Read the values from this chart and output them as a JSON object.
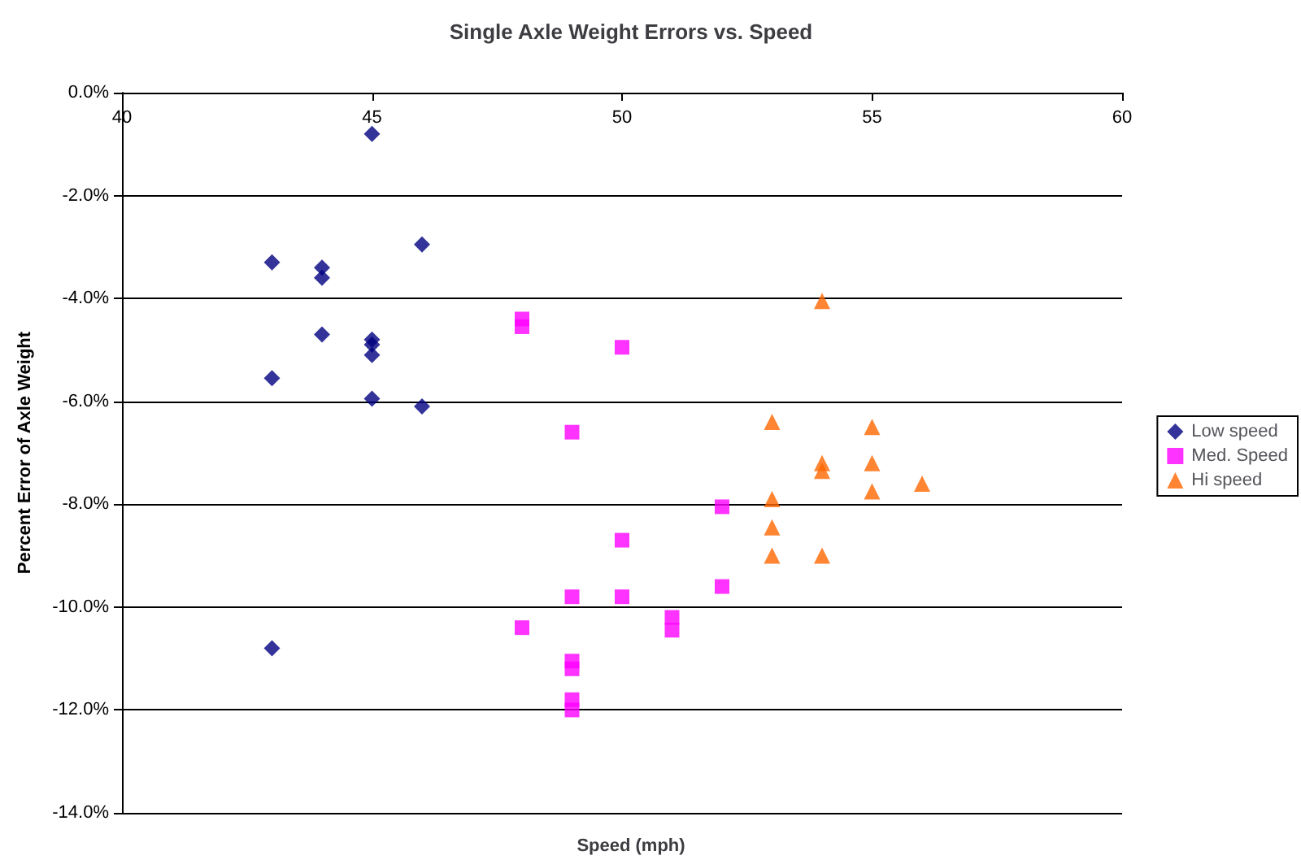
{
  "chart_data": {
    "type": "scatter",
    "title": "Single Axle Weight Errors vs. Speed",
    "xlabel": "Speed (mph)",
    "ylabel": "Percent Error of Axle Weight",
    "xlim": [
      40,
      60
    ],
    "xticks": [
      40,
      45,
      50,
      55,
      60
    ],
    "ylim": [
      -14,
      0
    ],
    "yticks": [
      {
        "value": -14,
        "label": "-14.0%"
      },
      {
        "value": -12,
        "label": "-12.0%"
      },
      {
        "value": -10,
        "label": "-10.0%"
      },
      {
        "value": -8,
        "label": "-8.0%"
      },
      {
        "value": -6,
        "label": "-6.0%"
      },
      {
        "value": -4,
        "label": "-4.0%"
      },
      {
        "value": -2,
        "label": "-2.0%"
      },
      {
        "value": 0,
        "label": "0.0%"
      }
    ],
    "grid": "y",
    "legend": "right",
    "series": [
      {
        "name": "Low speed",
        "color": "#000080",
        "marker": "diamond",
        "x": [
          43,
          43,
          43,
          44,
          44,
          44,
          45,
          45,
          45,
          45,
          45,
          46,
          46
        ],
        "values": [
          -3.3,
          -5.55,
          -10.8,
          -3.4,
          -3.6,
          -4.7,
          -0.8,
          -4.8,
          -4.9,
          -5.1,
          -5.95,
          -2.95,
          -6.1
        ]
      },
      {
        "name": "Med. Speed",
        "color": "#ff00ff",
        "marker": "square",
        "x": [
          48,
          48,
          48,
          49,
          49,
          49,
          49,
          49,
          49,
          50,
          50,
          50,
          51,
          51,
          52,
          52
        ],
        "values": [
          -4.4,
          -4.55,
          -10.4,
          -6.6,
          -9.8,
          -11.05,
          -11.2,
          -11.8,
          -12.0,
          -4.95,
          -8.7,
          -9.8,
          -10.2,
          -10.45,
          -8.05,
          -9.6
        ]
      },
      {
        "name": "Hi speed",
        "color": "#ff6600",
        "marker": "triangle",
        "x": [
          53,
          53,
          53,
          53,
          54,
          54,
          54,
          54,
          55,
          55,
          55,
          56
        ],
        "values": [
          -6.4,
          -7.9,
          -8.45,
          -9.0,
          -4.05,
          -7.2,
          -7.35,
          -9.0,
          -6.5,
          -7.2,
          -7.75,
          -7.6
        ]
      }
    ]
  }
}
